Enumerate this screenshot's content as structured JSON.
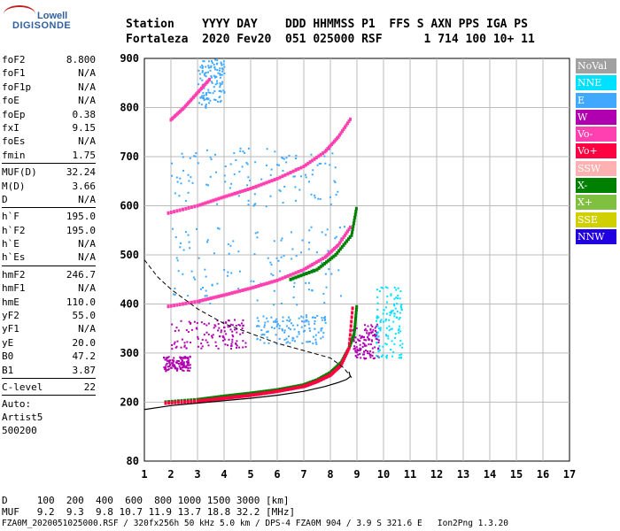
{
  "logo": {
    "line1": "Lowell",
    "line2": "DIGISONDE"
  },
  "header": {
    "labels": "Station    YYYY DAY    DDD HHMMSS P1  FFS S AXN PPS IGA PS",
    "values": "Fortaleza  2020 Fev20  051 025000 RSF      1 714 100 10+ 11"
  },
  "parameters": {
    "group1": [
      {
        "label": "foF2",
        "value": "8.800"
      },
      {
        "label": "foF1",
        "value": "N/A"
      },
      {
        "label": "foF1p",
        "value": "N/A"
      },
      {
        "label": "foE",
        "value": "N/A"
      },
      {
        "label": "foEp",
        "value": "0.38"
      },
      {
        "label": "fxI",
        "value": "9.15"
      },
      {
        "label": "foEs",
        "value": "N/A"
      },
      {
        "label": "fmin",
        "value": "1.75"
      }
    ],
    "group2": [
      {
        "label": "MUF(D)",
        "value": "32.24"
      },
      {
        "label": "M(D)",
        "value": "3.66"
      },
      {
        "label": "D",
        "value": "N/A"
      }
    ],
    "group3": [
      {
        "label": "h`F",
        "value": "195.0"
      },
      {
        "label": "h`F2",
        "value": "195.0"
      },
      {
        "label": "h`E",
        "value": "N/A"
      },
      {
        "label": "h`Es",
        "value": "N/A"
      }
    ],
    "group4": [
      {
        "label": "hmF2",
        "value": "246.7"
      },
      {
        "label": "hmF1",
        "value": "N/A"
      },
      {
        "label": "hmE",
        "value": "110.0"
      },
      {
        "label": "yF2",
        "value": "55.0"
      },
      {
        "label": "yF1",
        "value": "N/A"
      },
      {
        "label": "yE",
        "value": "20.0"
      },
      {
        "label": "B0",
        "value": "47.2"
      },
      {
        "label": "B1",
        "value": "3.87"
      }
    ],
    "group5": [
      {
        "label": "C-level",
        "value": "22"
      }
    ],
    "autoscaling": [
      "Auto:",
      "Artist5",
      "500200"
    ]
  },
  "legend": [
    {
      "label": "NoVal",
      "color": "#a0a0a0"
    },
    {
      "label": "NNE",
      "color": "#00e0ff"
    },
    {
      "label": "E",
      "color": "#40a8ff"
    },
    {
      "label": "W",
      "color": "#b000b0"
    },
    {
      "label": "Vo-",
      "color": "#ff40b0"
    },
    {
      "label": "Vo+",
      "color": "#ff0040"
    },
    {
      "label": "SSW",
      "color": "#ffb0b0"
    },
    {
      "label": "X-",
      "color": "#008000"
    },
    {
      "label": "X+",
      "color": "#80c040"
    },
    {
      "label": "SSE",
      "color": "#d0d000"
    },
    {
      "label": "NNW",
      "color": "#2000e0"
    }
  ],
  "bottom": {
    "line1": "D     100  200  400  600  800 1000 1500 3000 [km]",
    "line2": "MUF   9.2  9.3  9.8 10.7 11.9 13.7 18.8 32.2 [MHz]",
    "line3": "FZA0M_2020051025000.RSF / 320fx256h 50 kHz 5.0 km / DPS-4 FZA0M 904 / 3.9 S 321.6 E   Ion2Png 1.3.20"
  },
  "chart_data": {
    "type": "scatter",
    "xlim": [
      1,
      17
    ],
    "ylim": [
      80,
      900
    ],
    "x_ticks": [
      1,
      2,
      3,
      4,
      5,
      6,
      7,
      8,
      9,
      10,
      11,
      12,
      13,
      14,
      15,
      16,
      17
    ],
    "y_ticks": [
      80,
      200,
      300,
      400,
      500,
      600,
      700,
      800,
      900
    ],
    "grid": true,
    "traces": [
      {
        "name": "X-",
        "color": "#008000",
        "x": [
          1.8,
          3.0,
          4.0,
          5.0,
          6.0,
          7.0,
          7.5,
          8.0,
          8.4,
          8.7,
          8.9,
          9.0
        ],
        "y": [
          200,
          205,
          212,
          218,
          225,
          235,
          245,
          260,
          280,
          310,
          340,
          400
        ]
      },
      {
        "name": "Vo+",
        "color": "#ff0040",
        "x": [
          1.8,
          3.0,
          4.0,
          5.0,
          6.0,
          7.0,
          7.5,
          8.0,
          8.4,
          8.7,
          8.85
        ],
        "y": [
          198,
          202,
          208,
          214,
          222,
          232,
          242,
          255,
          275,
          310,
          400
        ]
      },
      {
        "name": "Vo-",
        "color": "#ff40b0",
        "x": [
          1.9,
          3.0,
          4.0,
          5.0,
          6.0,
          7.0,
          7.8,
          8.3,
          8.8
        ],
        "y": [
          395,
          405,
          418,
          432,
          448,
          470,
          495,
          520,
          560
        ]
      },
      {
        "name": "Vo-",
        "color": "#ff40b0",
        "x": [
          1.9,
          3.0,
          4.0,
          5.0,
          6.0,
          7.0,
          7.8,
          8.3,
          8.8
        ],
        "y": [
          585,
          600,
          618,
          635,
          655,
          680,
          710,
          740,
          780
        ]
      },
      {
        "name": "Vo-",
        "color": "#ff40b0",
        "x": [
          2.0,
          2.5,
          3.0,
          3.5
        ],
        "y": [
          775,
          800,
          830,
          860
        ]
      },
      {
        "name": "X-",
        "color": "#008000",
        "x": [
          6.5,
          7.5,
          8.2,
          8.8,
          9.0
        ],
        "y": [
          450,
          470,
          500,
          540,
          600
        ]
      }
    ],
    "clouds": [
      {
        "name": "W",
        "color": "#b000b0",
        "x": [
          1.7,
          2.7
        ],
        "y": [
          265,
          295
        ]
      },
      {
        "name": "W",
        "color": "#b000b0",
        "x": [
          2.0,
          4.8
        ],
        "y": [
          310,
          370
        ]
      },
      {
        "name": "W",
        "color": "#b000b0",
        "x": [
          8.8,
          9.8
        ],
        "y": [
          290,
          360
        ]
      },
      {
        "name": "NNE",
        "color": "#00e0ff",
        "x": [
          9.7,
          10.7
        ],
        "y": [
          290,
          440
        ]
      },
      {
        "name": "E",
        "color": "#40a8ff",
        "x": [
          2.0,
          8.3
        ],
        "y": [
          600,
          720
        ]
      },
      {
        "name": "E",
        "color": "#40a8ff",
        "x": [
          2.0,
          8.5
        ],
        "y": [
          400,
          560
        ]
      },
      {
        "name": "E",
        "color": "#40a8ff",
        "x": [
          3.0,
          4.0
        ],
        "y": [
          800,
          900
        ]
      },
      {
        "name": "E",
        "color": "#40a8ff",
        "x": [
          5.2,
          7.8
        ],
        "y": [
          320,
          380
        ]
      }
    ],
    "profile": {
      "x": [
        1.0,
        2.0,
        3.0,
        4.0,
        5.0,
        6.0,
        7.0,
        7.8,
        8.3,
        8.6,
        8.75,
        8.7
      ],
      "y": [
        185,
        193,
        198,
        203,
        208,
        214,
        222,
        232,
        240,
        246,
        252,
        262
      ]
    },
    "muf_curve": {
      "x": [
        1.0,
        1.5,
        2.0,
        3.0,
        4.0,
        5.0,
        6.0,
        7.0,
        8.0,
        8.5,
        8.8
      ],
      "y": [
        490,
        455,
        430,
        390,
        360,
        340,
        320,
        305,
        290,
        270,
        250
      ]
    }
  }
}
